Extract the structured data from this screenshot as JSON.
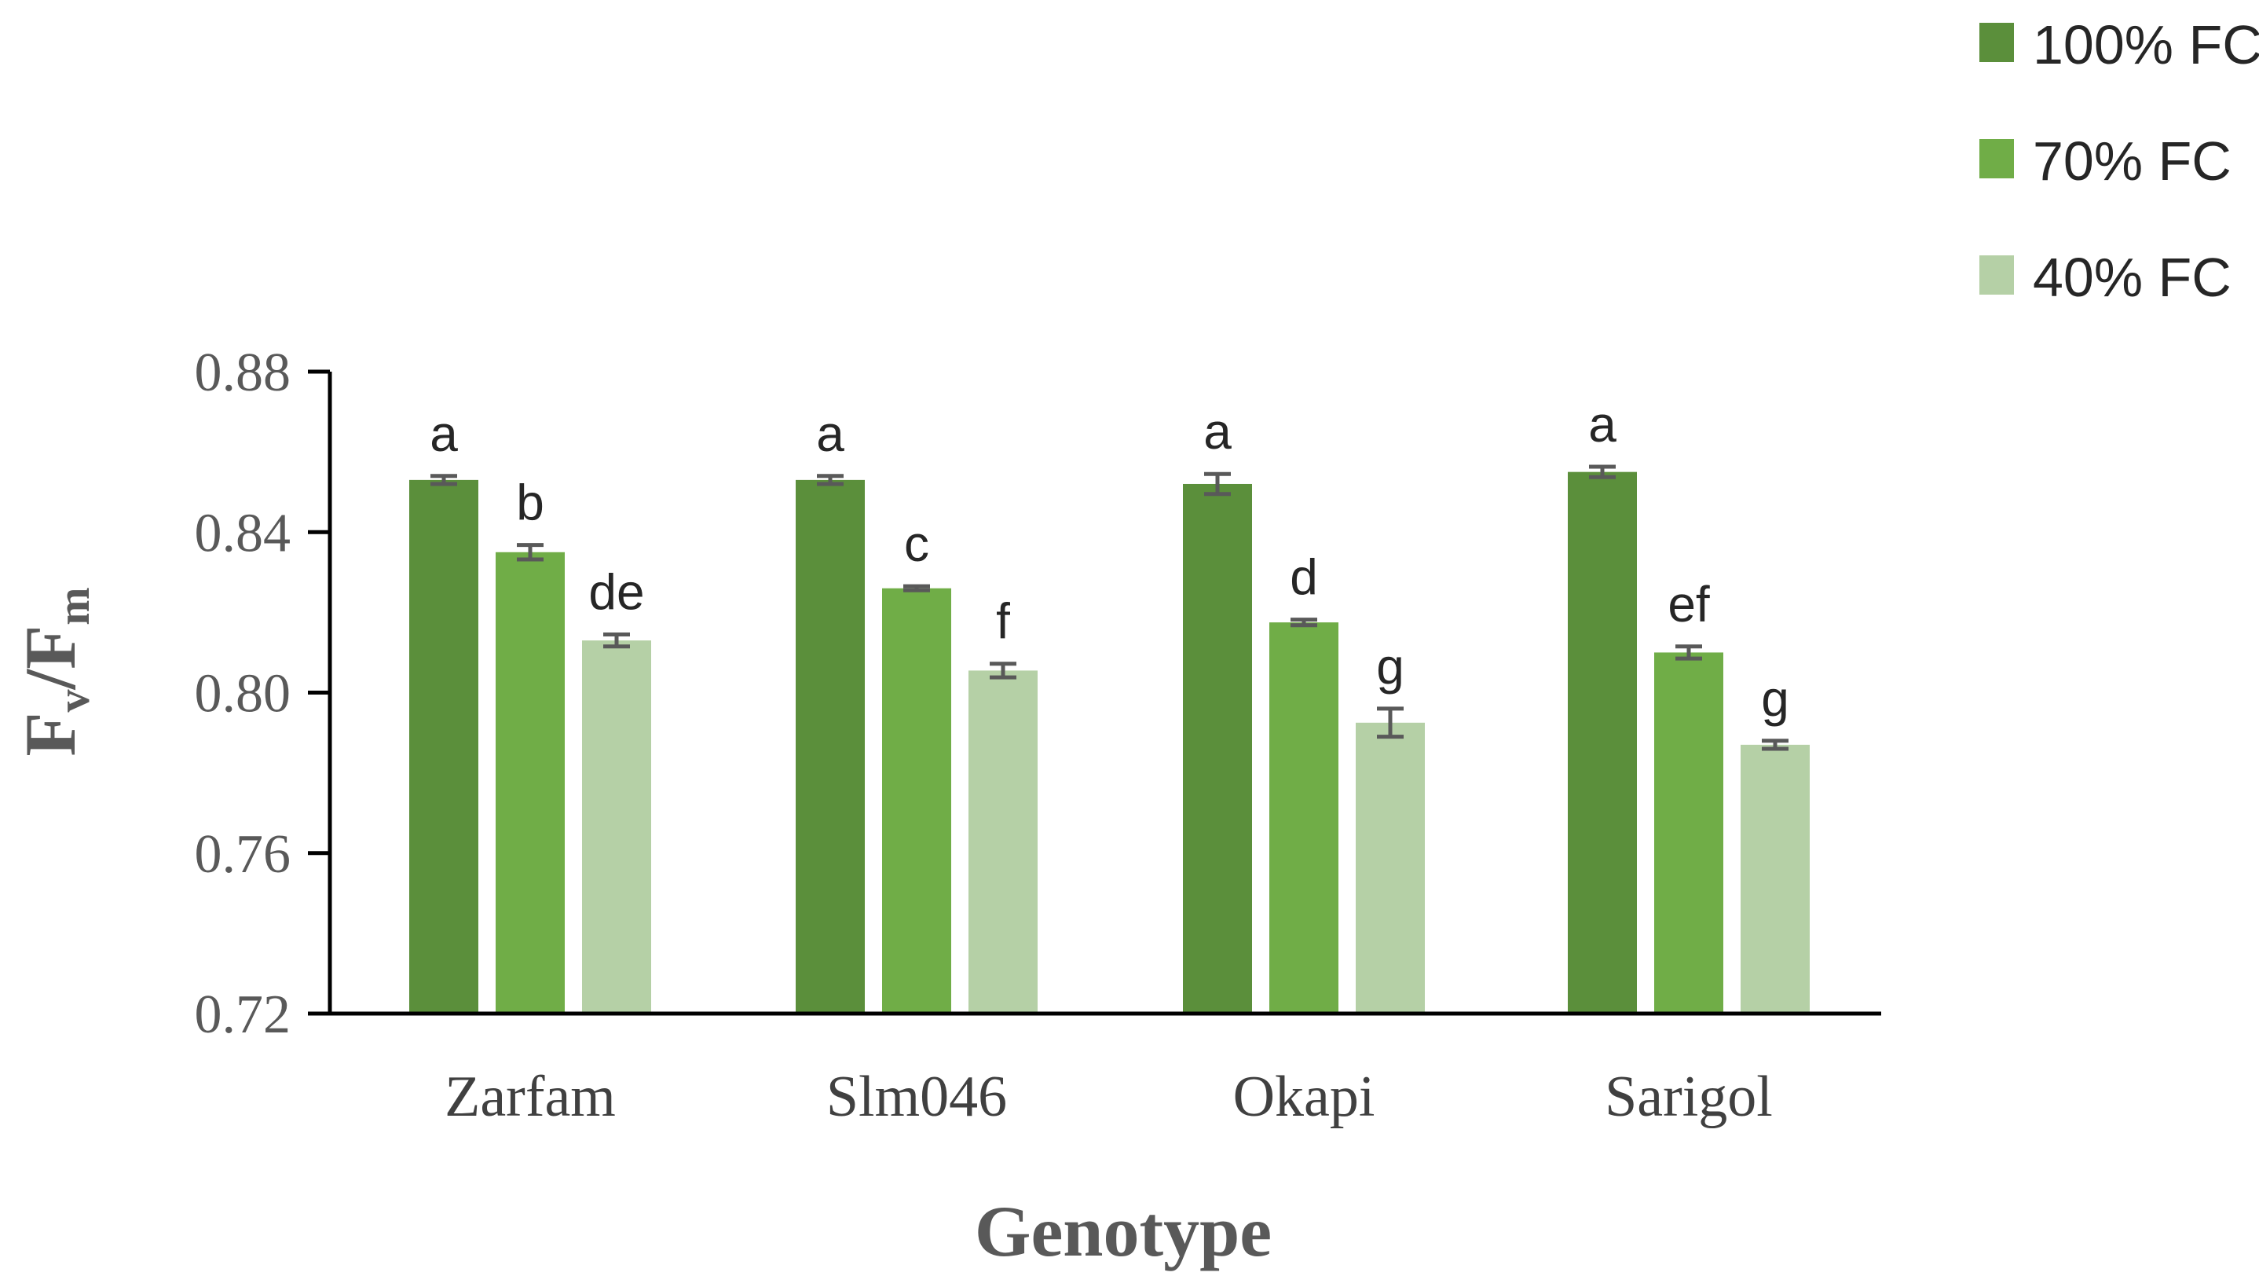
{
  "chart_data": {
    "type": "bar",
    "title": "",
    "xlabel": "Genotype",
    "ylabel": {
      "main": "F",
      "sub_v": "v",
      "slash": "/",
      "main2": "F",
      "sub_m": "m"
    },
    "ylim": [
      0.72,
      0.88
    ],
    "yticks": [
      "0.72",
      "0.76",
      "0.80",
      "0.84",
      "0.88"
    ],
    "categories": [
      "Zarfam",
      "Slm046",
      "Okapi",
      "Sarigol"
    ],
    "legend_position": "top-right",
    "series": [
      {
        "name": "100% FC",
        "color": "#5b8f3b",
        "values": [
          0.853,
          0.853,
          0.852,
          0.855
        ],
        "errors": [
          0.001,
          0.001,
          0.0025,
          0.0013
        ],
        "letters": [
          "a",
          "a",
          "a",
          "a"
        ]
      },
      {
        "name": "70% FC",
        "color": "#70ad47",
        "values": [
          0.835,
          0.826,
          0.8175,
          0.81
        ],
        "errors": [
          0.0018,
          0.0005,
          0.0007,
          0.0015
        ],
        "letters": [
          "b",
          "c",
          "d",
          "ef"
        ]
      },
      {
        "name": "40% FC",
        "color": "#b5d0a6",
        "values": [
          0.813,
          0.8055,
          0.7925,
          0.787
        ],
        "errors": [
          0.0015,
          0.0017,
          0.0035,
          0.001
        ],
        "letters": [
          "de",
          "f",
          "g",
          "g"
        ]
      }
    ]
  }
}
